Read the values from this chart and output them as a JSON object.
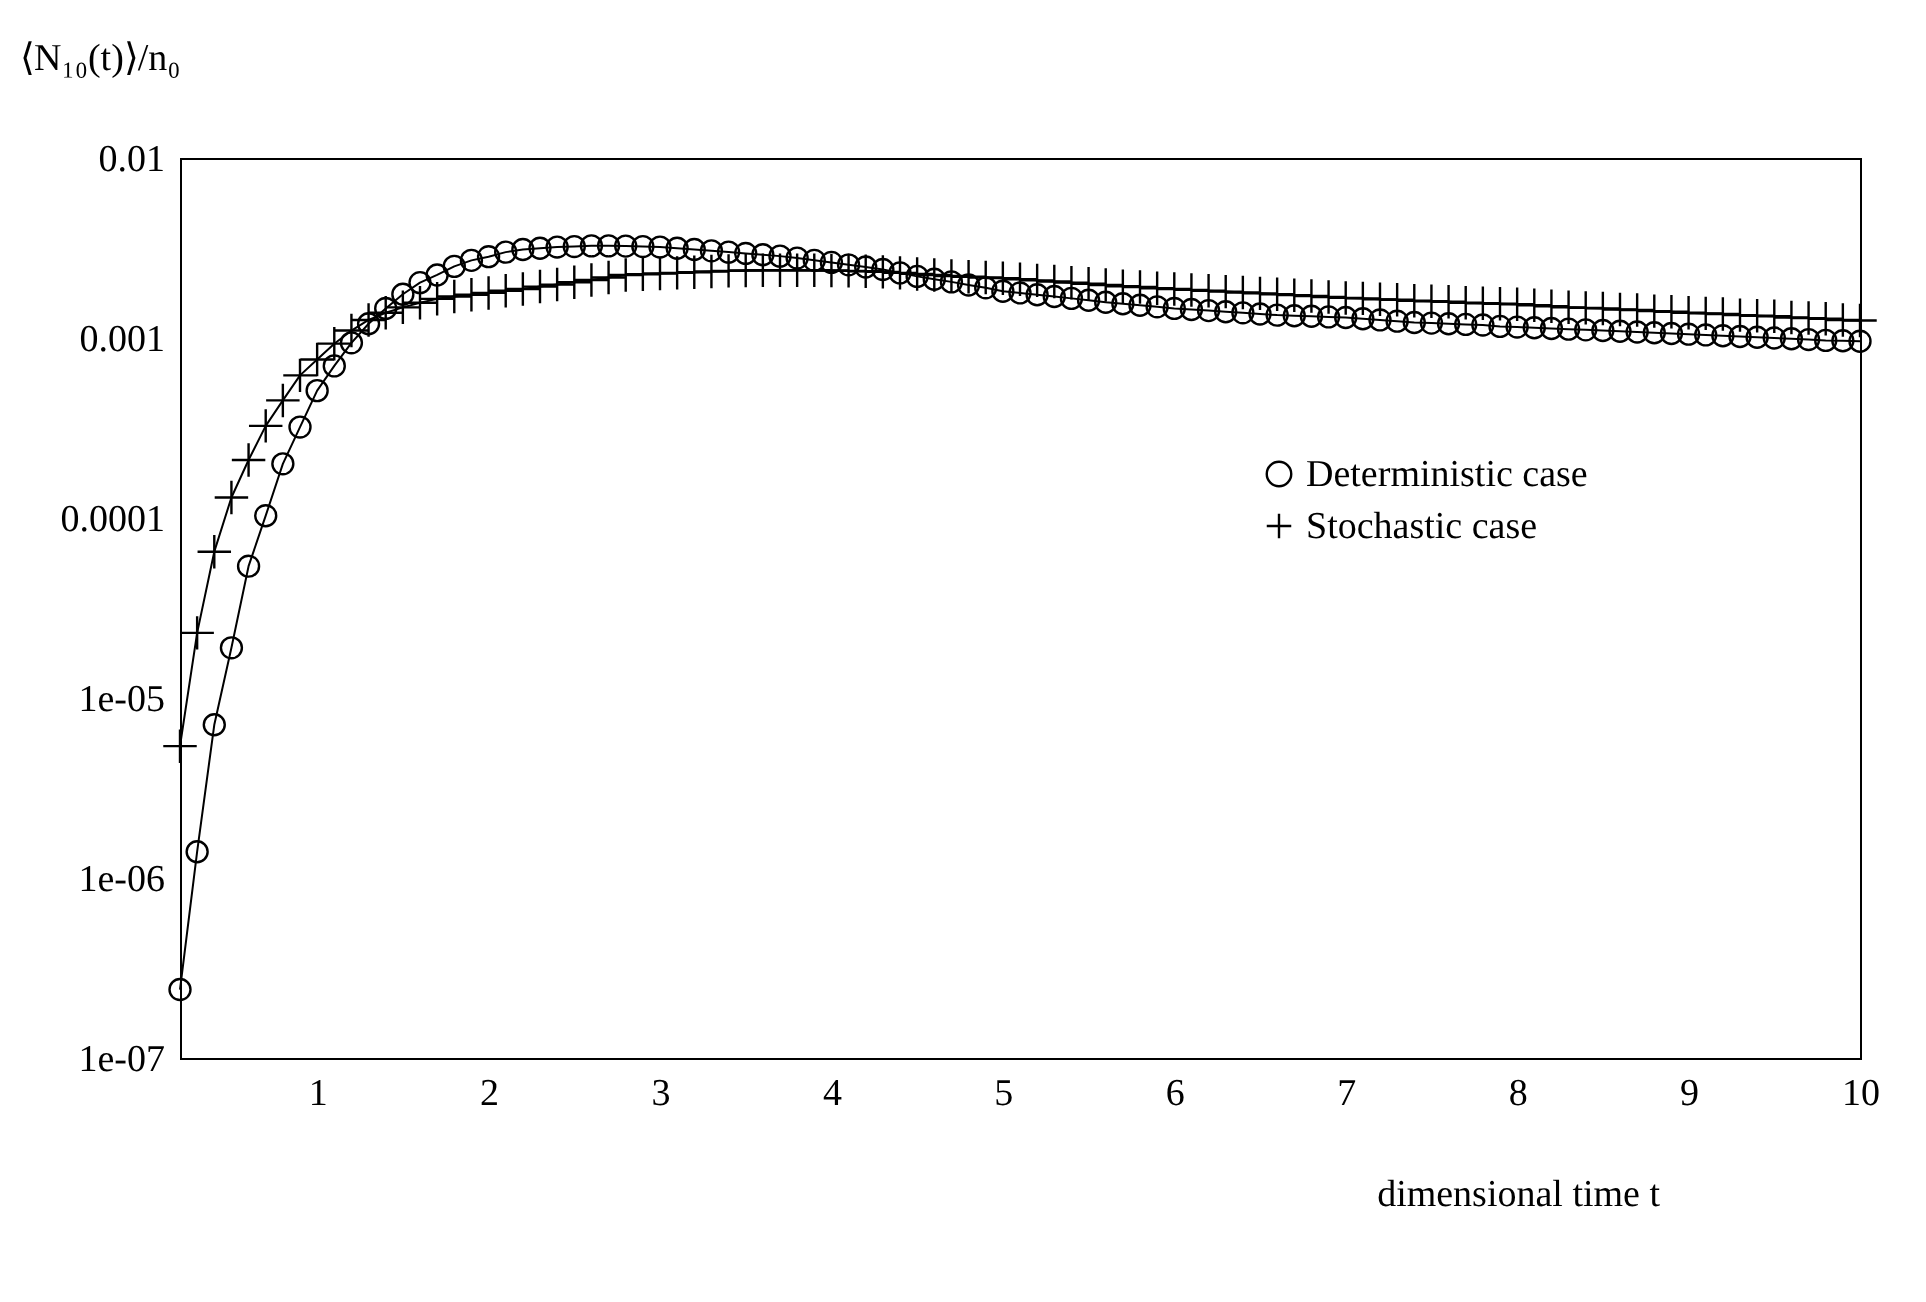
{
  "chart_data": {
    "type": "line",
    "xlabel": "dimensional time t",
    "ylabel": "⟨N₁₀(t)⟩/n₀",
    "x": [
      0.2,
      0.3,
      0.4,
      0.5,
      0.6,
      0.7,
      0.8,
      0.9,
      1.0,
      1.1,
      1.2,
      1.3,
      1.4,
      1.5,
      1.6,
      1.7,
      1.8,
      1.9,
      2.0,
      2.1,
      2.2,
      2.3,
      2.4,
      2.5,
      2.6,
      2.7,
      2.8,
      2.9,
      3.0,
      3.1,
      3.2,
      3.3,
      3.4,
      3.5,
      3.6,
      3.7,
      3.8,
      3.9,
      4.0,
      4.1,
      4.2,
      4.3,
      4.4,
      4.5,
      4.6,
      4.7,
      4.8,
      4.9,
      5.0,
      5.1,
      5.2,
      5.3,
      5.4,
      5.5,
      5.6,
      5.7,
      5.8,
      5.9,
      6.0,
      6.1,
      6.2,
      6.3,
      6.4,
      6.5,
      6.6,
      6.7,
      6.8,
      6.9,
      7.0,
      7.1,
      7.2,
      7.3,
      7.4,
      7.5,
      7.6,
      7.7,
      7.8,
      7.9,
      8.0,
      8.1,
      8.2,
      8.3,
      8.4,
      8.5,
      8.6,
      8.7,
      8.8,
      8.9,
      9.0,
      9.1,
      9.2,
      9.3,
      9.4,
      9.5,
      9.6,
      9.7,
      9.8,
      9.9,
      10.0
    ],
    "series": [
      {
        "name": "Deterministic case",
        "color": "#000000",
        "marker": "circle",
        "values": [
          2.4e-07,
          1.4e-06,
          7.1e-06,
          1.9e-05,
          5.4e-05,
          0.000103,
          0.0002,
          0.00032,
          0.00051,
          0.0007,
          0.00094,
          0.0012,
          0.00146,
          0.00175,
          0.00203,
          0.00224,
          0.0025,
          0.0027,
          0.00283,
          0.003,
          0.0031,
          0.00315,
          0.0032,
          0.00322,
          0.00325,
          0.00325,
          0.00324,
          0.00322,
          0.0032,
          0.00315,
          0.0031,
          0.00305,
          0.003,
          0.00295,
          0.0029,
          0.00285,
          0.00278,
          0.0027,
          0.00263,
          0.00255,
          0.00248,
          0.0024,
          0.0023,
          0.0022,
          0.00212,
          0.00205,
          0.00197,
          0.0019,
          0.00182,
          0.00178,
          0.00174,
          0.0017,
          0.00166,
          0.00162,
          0.00158,
          0.00155,
          0.00152,
          0.00149,
          0.00146,
          0.00144,
          0.00142,
          0.0014,
          0.00138,
          0.00136,
          0.00134,
          0.00133,
          0.00132,
          0.00131,
          0.0013,
          0.00128,
          0.00126,
          0.00124,
          0.00122,
          0.00121,
          0.0012,
          0.00119,
          0.00118,
          0.00116,
          0.00115,
          0.00114,
          0.00113,
          0.00112,
          0.00111,
          0.0011,
          0.00109,
          0.00108,
          0.00107,
          0.00106,
          0.00105,
          0.00104,
          0.00103,
          0.00102,
          0.00101,
          0.001,
          0.00099,
          0.00098,
          0.00097,
          0.000965,
          0.00096
        ]
      },
      {
        "name": "Stochastic case",
        "color": "#000000",
        "marker": "cross",
        "values": [
          5.4e-06,
          2.3e-05,
          6.5e-05,
          0.00013,
          0.00021,
          0.000325,
          0.00045,
          0.00062,
          0.00076,
          0.00093,
          0.0011,
          0.00126,
          0.00138,
          0.00148,
          0.00157,
          0.00165,
          0.0017,
          0.00174,
          0.00178,
          0.00183,
          0.00187,
          0.00193,
          0.00198,
          0.00204,
          0.0021,
          0.00217,
          0.00224,
          0.00226,
          0.00228,
          0.0023,
          0.00232,
          0.00234,
          0.00236,
          0.00237,
          0.00238,
          0.00238,
          0.00238,
          0.00238,
          0.00237,
          0.00236,
          0.00235,
          0.00233,
          0.0023,
          0.00227,
          0.00224,
          0.00221,
          0.00219,
          0.00217,
          0.00215,
          0.00212,
          0.00209,
          0.00206,
          0.00203,
          0.002,
          0.00197,
          0.00194,
          0.00192,
          0.00189,
          0.00187,
          0.00185,
          0.00183,
          0.00181,
          0.00179,
          0.00177,
          0.00175,
          0.00173,
          0.00171,
          0.00169,
          0.00167,
          0.00166,
          0.00164,
          0.00163,
          0.00161,
          0.0016,
          0.00159,
          0.00157,
          0.00156,
          0.00155,
          0.00154,
          0.00152,
          0.0015,
          0.00148,
          0.00147,
          0.00146,
          0.00144,
          0.00143,
          0.00141,
          0.0014,
          0.00138,
          0.00137,
          0.00136,
          0.00134,
          0.00133,
          0.00132,
          0.0013,
          0.00129,
          0.00128,
          0.00126,
          0.00125
        ]
      }
    ],
    "xlim": [
      0.2,
      10
    ],
    "xticks": [
      1,
      2,
      3,
      4,
      5,
      6,
      7,
      8,
      9,
      10
    ],
    "ylim": [
      1e-07,
      0.01
    ],
    "yticks": [
      0.01,
      0.001,
      0.0001,
      {
        "value": 1e-05,
        "label": "1e-05"
      },
      {
        "value": 1e-06,
        "label": "1e-06"
      },
      {
        "value": 1e-07,
        "label": "1e-07"
      }
    ],
    "log": "y",
    "grid": false,
    "legend": "right",
    "line_style": "solid"
  }
}
